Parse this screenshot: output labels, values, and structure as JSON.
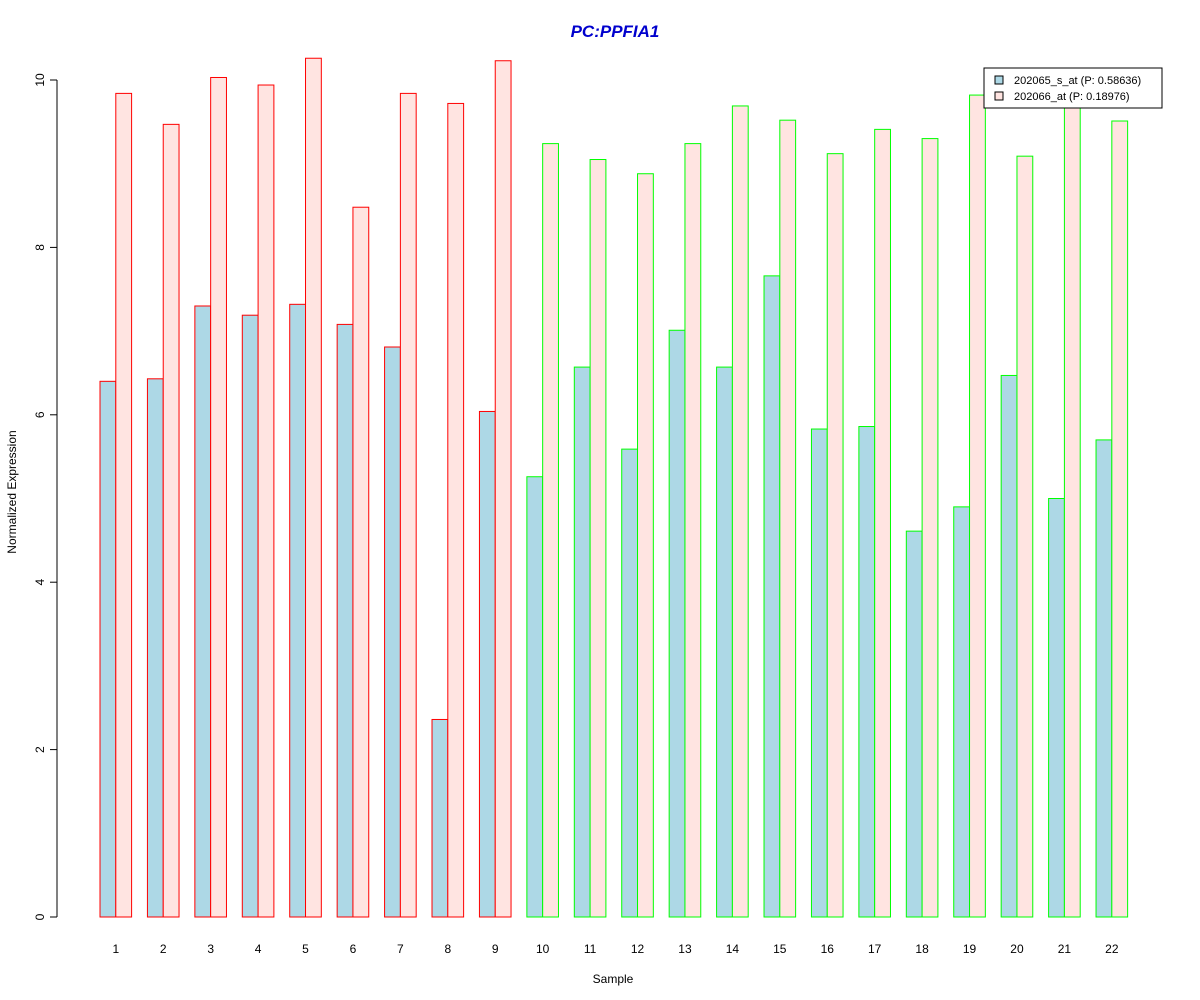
{
  "chart_data": {
    "type": "bar",
    "title": "PC:PPFIA1",
    "xlabel": "Sample",
    "ylabel": "Normalized Expression",
    "ylim": [
      0,
      10.5
    ],
    "yticks": [
      0,
      2,
      4,
      6,
      8,
      10
    ],
    "grid": false,
    "legend_position": "top-right",
    "categories": [
      "1",
      "2",
      "3",
      "4",
      "5",
      "6",
      "7",
      "8",
      "9",
      "10",
      "11",
      "12",
      "13",
      "14",
      "15",
      "16",
      "17",
      "18",
      "19",
      "20",
      "21",
      "22"
    ],
    "group_border_colors": [
      "#ff0000",
      "#ff0000",
      "#ff0000",
      "#ff0000",
      "#ff0000",
      "#ff0000",
      "#ff0000",
      "#ff0000",
      "#ff0000",
      "#00ff00",
      "#00ff00",
      "#00ff00",
      "#00ff00",
      "#00ff00",
      "#00ff00",
      "#00ff00",
      "#00ff00",
      "#00ff00",
      "#00ff00",
      "#00ff00",
      "#00ff00",
      "#00ff00"
    ],
    "series": [
      {
        "name": "202065_s_at (P: 0.58636)",
        "fill": "#add8e6",
        "values": [
          6.4,
          6.43,
          7.3,
          7.19,
          7.32,
          7.08,
          6.81,
          2.36,
          6.04,
          5.26,
          6.57,
          5.59,
          7.01,
          6.57,
          7.66,
          5.83,
          5.86,
          4.61,
          4.9,
          6.47,
          5.0,
          5.7
        ]
      },
      {
        "name": "202066_at (P: 0.18976)",
        "fill": "#ffe4e1",
        "values": [
          9.84,
          9.47,
          10.03,
          9.94,
          10.26,
          8.48,
          9.84,
          9.72,
          10.23,
          9.24,
          9.05,
          8.88,
          9.24,
          9.69,
          9.52,
          9.12,
          9.41,
          9.3,
          9.82,
          9.09,
          9.72,
          9.51
        ]
      }
    ]
  },
  "colors": {
    "title": "#0000cd",
    "axis": "#000000"
  }
}
